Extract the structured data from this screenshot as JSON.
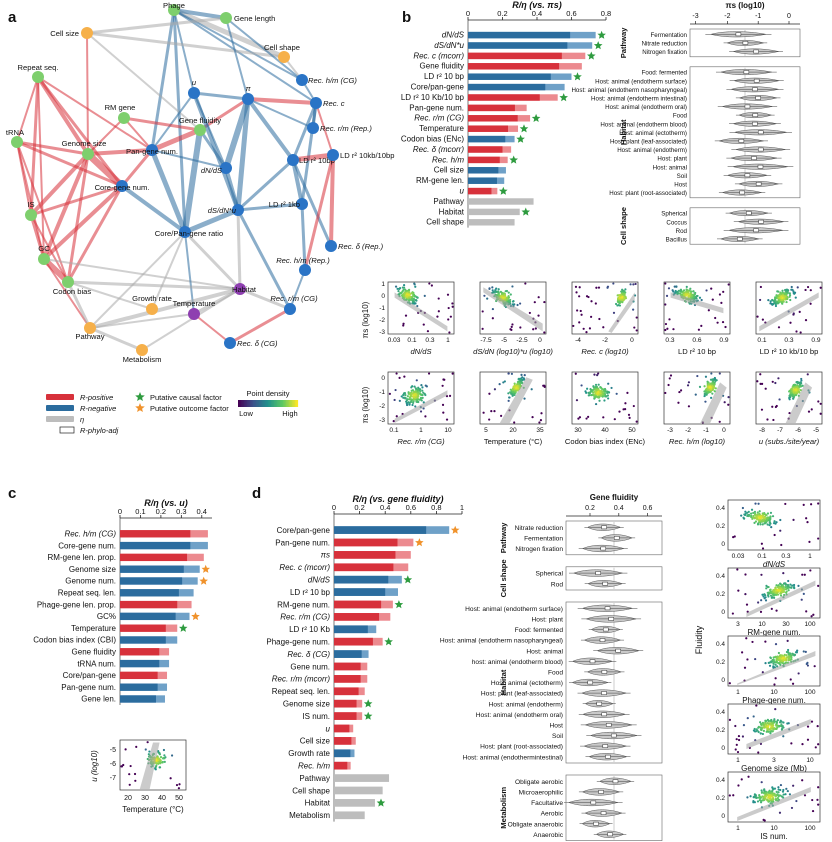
{
  "panels": {
    "a": "a",
    "b": "b",
    "c": "c",
    "d": "d"
  },
  "colors": {
    "pos": "#d7313b",
    "neg": "#2b6c9e",
    "eta": "#bdbdbd",
    "green": "#2e9b3f",
    "orange": "#f0922b",
    "node_green": "#7ecf6d",
    "node_orange": "#f6b04a",
    "node_blue": "#2a74c6",
    "node_purple": "#8e3fb0"
  },
  "network": {
    "nodes": [
      {
        "id": "phage",
        "label": "Phage",
        "c": "green",
        "italic": false
      },
      {
        "id": "genelen",
        "label": "Gene length",
        "c": "green",
        "italic": false
      },
      {
        "id": "cellsize",
        "label": "Cell size",
        "c": "orange",
        "italic": false
      },
      {
        "id": "cellshape",
        "label": "Cell shape",
        "c": "orange",
        "italic": false
      },
      {
        "id": "rephm",
        "label": "Rec. h/m (CG)",
        "c": "blue",
        "italic": true
      },
      {
        "id": "u",
        "label": "u",
        "c": "blue",
        "italic": true
      },
      {
        "id": "repeat",
        "label": "Repeat seq.",
        "c": "green",
        "italic": false
      },
      {
        "id": "pi",
        "label": "π",
        "c": "blue",
        "italic": true
      },
      {
        "id": "recc",
        "label": "Rec. c",
        "c": "blue",
        "italic": true
      },
      {
        "id": "rmgene",
        "label": "RM gene",
        "c": "green",
        "italic": false
      },
      {
        "id": "recrmrep",
        "label": "Rec. r/m (Rep.)",
        "c": "blue",
        "italic": true
      },
      {
        "id": "trna",
        "label": "tRNA",
        "c": "green",
        "italic": false
      },
      {
        "id": "genefluid",
        "label": "Gene fluidity",
        "c": "green",
        "italic": false
      },
      {
        "id": "genomesize",
        "label": "Genome size",
        "c": "green",
        "italic": false
      },
      {
        "id": "pangene",
        "label": "Pan-gene num.",
        "c": "blue",
        "italic": false
      },
      {
        "id": "ld10",
        "label": "LD r² 10bp",
        "c": "blue",
        "italic": false
      },
      {
        "id": "ld10kb",
        "label": "LD r² 10kb/10bp",
        "c": "blue",
        "italic": false
      },
      {
        "id": "dnds",
        "label": "dN/dS",
        "c": "blue",
        "italic": true
      },
      {
        "id": "coregene",
        "label": "Core-gene num.",
        "c": "blue",
        "italic": false
      },
      {
        "id": "is",
        "label": "IS",
        "c": "green",
        "italic": false
      },
      {
        "id": "ld1kb",
        "label": "LD r² 1kb",
        "c": "blue",
        "italic": false
      },
      {
        "id": "dsdnu",
        "label": "dS/dN*u",
        "c": "blue",
        "italic": true
      },
      {
        "id": "corepan",
        "label": "Core/Pan-gene ratio",
        "c": "blue",
        "italic": false
      },
      {
        "id": "recdrep",
        "label": "Rec. δ (Rep.)",
        "c": "blue",
        "italic": true
      },
      {
        "id": "gc",
        "label": "GC",
        "c": "green",
        "italic": false
      },
      {
        "id": "rechmrep",
        "label": "Rec. h/m (Rep.)",
        "c": "blue",
        "italic": true
      },
      {
        "id": "codon",
        "label": "Codon bias",
        "c": "green",
        "italic": false
      },
      {
        "id": "habitat",
        "label": "Habitat",
        "c": "purple",
        "italic": false
      },
      {
        "id": "growth",
        "label": "Growth rate",
        "c": "orange",
        "italic": false
      },
      {
        "id": "temp",
        "label": "Temperature",
        "c": "purple",
        "italic": false
      },
      {
        "id": "recrmcg",
        "label": "Rec. r/m (CG)",
        "c": "blue",
        "italic": true
      },
      {
        "id": "pathway",
        "label": "Pathway",
        "c": "orange",
        "italic": false
      },
      {
        "id": "recdcg",
        "label": "Rec. δ (CG)",
        "c": "blue",
        "italic": true
      },
      {
        "id": "metab",
        "label": "Metabolism",
        "c": "orange",
        "italic": false
      }
    ],
    "legend": {
      "r_pos": "R-positive",
      "r_neg": "R-negative",
      "eta": "η",
      "phylo": "R-phylo-adj",
      "causal": "Putative causal factor",
      "outcome": "Putative outcome factor",
      "density": "Point density",
      "low": "Low",
      "high": "High"
    }
  },
  "panel_b": {
    "title": "R/η (vs. πs)",
    "ticks": [
      "0",
      "0.2",
      "0.4",
      "0.6",
      "0.8"
    ],
    "bars": [
      {
        "label": "dN/dS",
        "italic": true,
        "v": 0.74,
        "c": "neg",
        "star": "green"
      },
      {
        "label": "dS/dN*u",
        "italic": true,
        "v": 0.72,
        "c": "neg",
        "star": "green"
      },
      {
        "label": "Rec. c (mcorr)",
        "italic": true,
        "v": 0.68,
        "c": "pos",
        "star": "green"
      },
      {
        "label": "Gene fluidity",
        "italic": false,
        "v": 0.66,
        "c": "pos",
        "star": ""
      },
      {
        "label": "LD r² 10 bp",
        "italic": false,
        "v": 0.6,
        "c": "neg",
        "star": "green"
      },
      {
        "label": "Core/pan-gene",
        "italic": false,
        "v": 0.56,
        "c": "neg",
        "star": ""
      },
      {
        "label": "LD r² 10 Kb/10 bp",
        "italic": false,
        "v": 0.52,
        "c": "pos",
        "star": "green"
      },
      {
        "label": "Pan-gene num.",
        "italic": false,
        "v": 0.34,
        "c": "pos",
        "star": ""
      },
      {
        "label": "Rec. r/m (CG)",
        "italic": true,
        "v": 0.36,
        "c": "pos",
        "star": "green"
      },
      {
        "label": "Temperature",
        "italic": false,
        "v": 0.29,
        "c": "pos",
        "star": "green"
      },
      {
        "label": "Codon bias (ENc)",
        "italic": false,
        "v": 0.27,
        "c": "neg",
        "star": "green"
      },
      {
        "label": "Rec. δ (mcorr)",
        "italic": true,
        "v": 0.25,
        "c": "pos",
        "star": ""
      },
      {
        "label": "Rec. h/m",
        "italic": true,
        "v": 0.23,
        "c": "pos",
        "star": "green"
      },
      {
        "label": "Cell size",
        "italic": false,
        "v": 0.22,
        "c": "neg",
        "star": ""
      },
      {
        "label": "RM-gene len.",
        "italic": false,
        "v": 0.21,
        "c": "neg",
        "star": ""
      },
      {
        "label": "u",
        "italic": true,
        "v": 0.17,
        "c": "pos",
        "star": "green"
      },
      {
        "label": "Pathway",
        "italic": false,
        "v": 0.38,
        "c": "eta",
        "star": ""
      },
      {
        "label": "Habitat",
        "italic": false,
        "v": 0.3,
        "c": "eta",
        "star": "green"
      },
      {
        "label": "Cell shape",
        "italic": false,
        "v": 0.27,
        "c": "eta",
        "star": ""
      }
    ],
    "violin_title": "πs (log10)",
    "violin_ticks": [
      "-3",
      "-2",
      "-1",
      "0"
    ],
    "groups": [
      {
        "name": "Pathway",
        "items": [
          "Fermentation",
          "Nitrate reduction",
          "Nitrogen fixation"
        ]
      },
      {
        "name": "Habitat",
        "items": [
          "Food: fermented",
          "Host: animal (endotherm surface)",
          "Host: animal (endotherm nasopharyngeal)",
          "Host: animal (endotherm intestinal)",
          "Host: animal (endotherm oral)",
          "Food",
          "Host: animal (endotherm blood)",
          "Host: animal (ectotherm)",
          "Host: plant (leaf-associated)",
          "Host: animal (endotherm)",
          "Host: plant",
          "Host: animal",
          "Soil",
          "Host",
          "Host: plant (root-associated)"
        ]
      },
      {
        "name": "Cell shape",
        "items": [
          "Spherical",
          "Coccus",
          "Rod",
          "Bacillus"
        ]
      }
    ],
    "scatter_ylabel": "πs (log10)",
    "scatter_row1": [
      {
        "xlabel": "dN/dS",
        "ticks": [
          "0.03",
          "0.1",
          "0.3",
          "1"
        ]
      },
      {
        "xlabel": "dS/dN (log10)*u (log10)",
        "ticks": [
          "-7.5",
          "-5",
          "-2.5",
          "0"
        ]
      },
      {
        "xlabel": "Rec. c (log10)",
        "ticks": [
          "-4",
          "-2",
          "0"
        ]
      },
      {
        "xlabel": "LD r² 10 bp",
        "ticks": [
          "0.3",
          "0.6",
          "0.9"
        ]
      },
      {
        "xlabel": "LD r² 10 kb/10 bp",
        "ticks": [
          "0.1",
          "0.3",
          "0.9"
        ]
      }
    ],
    "scatter_row2": [
      {
        "xlabel": "Rec. r/m (CG)",
        "ticks": [
          "0.1",
          "1",
          "10"
        ]
      },
      {
        "xlabel": "Temperature (°C)",
        "ticks": [
          "5",
          "20",
          "35"
        ]
      },
      {
        "xlabel": "Codon bias index (ENc)",
        "ticks": [
          "30",
          "40",
          "50"
        ]
      },
      {
        "xlabel": "Rec. h/m (log10)",
        "ticks": [
          "-3",
          "-2",
          "-1",
          "0"
        ]
      },
      {
        "xlabel": "u (subs./site/year)",
        "ticks": [
          "-8",
          "-7",
          "-6",
          "-5"
        ]
      }
    ],
    "row1_yticks": [
      "-3",
      "-2",
      "-1",
      "0",
      "1"
    ],
    "row2_yticks": [
      "-3",
      "-2",
      "-1",
      "0"
    ]
  },
  "panel_c": {
    "title": "R/η (vs. u)",
    "ticks": [
      "0",
      "0.1",
      "0.2",
      "0.3",
      "0.4"
    ],
    "bars": [
      {
        "label": "Rec. h/m (CG)",
        "italic": true,
        "v": 0.43,
        "c": "pos",
        "star": ""
      },
      {
        "label": "Core-gene num.",
        "italic": false,
        "v": 0.43,
        "c": "neg",
        "star": ""
      },
      {
        "label": "RM-gene len. prop.",
        "italic": false,
        "v": 0.41,
        "c": "pos",
        "star": ""
      },
      {
        "label": "Genome size",
        "italic": false,
        "v": 0.39,
        "c": "neg",
        "star": "orange"
      },
      {
        "label": "Genome num.",
        "italic": false,
        "v": 0.38,
        "c": "neg",
        "star": "orange"
      },
      {
        "label": "Repeat seq. len.",
        "italic": false,
        "v": 0.36,
        "c": "neg",
        "star": ""
      },
      {
        "label": "Phage-gene len. prop.",
        "italic": false,
        "v": 0.35,
        "c": "pos",
        "star": ""
      },
      {
        "label": "GC%",
        "italic": false,
        "v": 0.34,
        "c": "neg",
        "star": "orange"
      },
      {
        "label": "Temperature",
        "italic": false,
        "v": 0.28,
        "c": "pos",
        "star": "green"
      },
      {
        "label": "Codon bias index (CBI)",
        "italic": false,
        "v": 0.28,
        "c": "neg",
        "star": ""
      },
      {
        "label": "Gene fluidity",
        "italic": false,
        "v": 0.24,
        "c": "pos",
        "star": ""
      },
      {
        "label": "tRNA num.",
        "italic": false,
        "v": 0.24,
        "c": "neg",
        "star": ""
      },
      {
        "label": "Core/pan-gene",
        "italic": false,
        "v": 0.23,
        "c": "pos",
        "star": ""
      },
      {
        "label": "Pan-gene num.",
        "italic": false,
        "v": 0.23,
        "c": "neg",
        "star": ""
      },
      {
        "label": "Gene len.",
        "italic": false,
        "v": 0.22,
        "c": "neg",
        "star": ""
      }
    ],
    "scatter": {
      "ylabel": "u (log10)",
      "xlabel": "Temperature (°C)",
      "yticks": [
        "-5",
        "-6",
        "-7"
      ],
      "xticks": [
        "20",
        "30",
        "40",
        "50"
      ]
    }
  },
  "panel_d": {
    "title": "R/η (vs. gene fluidity)",
    "ticks": [
      "0",
      "0.2",
      "0.4",
      "0.6",
      "0.8",
      "1"
    ],
    "bars": [
      {
        "label": "Core/pan-gene",
        "italic": false,
        "v": 0.9,
        "c": "neg",
        "star": "orange"
      },
      {
        "label": "Pan-gene num.",
        "italic": false,
        "v": 0.62,
        "c": "pos",
        "star": "orange"
      },
      {
        "label": "πs",
        "italic": true,
        "v": 0.6,
        "c": "pos",
        "star": ""
      },
      {
        "label": "Rec. c (mcorr)",
        "italic": true,
        "v": 0.58,
        "c": "pos",
        "star": ""
      },
      {
        "label": "dN/dS",
        "italic": true,
        "v": 0.53,
        "c": "neg",
        "star": "green"
      },
      {
        "label": "LD r² 10 bp",
        "italic": false,
        "v": 0.5,
        "c": "neg",
        "star": ""
      },
      {
        "label": "RM-gene num.",
        "italic": false,
        "v": 0.46,
        "c": "pos",
        "star": "green"
      },
      {
        "label": "Rec. r/m (CG)",
        "italic": true,
        "v": 0.44,
        "c": "pos",
        "star": ""
      },
      {
        "label": "LD r² 10 Kb",
        "italic": false,
        "v": 0.33,
        "c": "neg",
        "star": ""
      },
      {
        "label": "Phage-gene num.",
        "italic": false,
        "v": 0.38,
        "c": "pos",
        "star": "green"
      },
      {
        "label": "Rec. δ (CG)",
        "italic": true,
        "v": 0.27,
        "c": "neg",
        "star": ""
      },
      {
        "label": "Gene num.",
        "italic": false,
        "v": 0.26,
        "c": "pos",
        "star": ""
      },
      {
        "label": "Rec. r/m (mcorr)",
        "italic": true,
        "v": 0.26,
        "c": "pos",
        "star": ""
      },
      {
        "label": "Repeat seq. len.",
        "italic": false,
        "v": 0.24,
        "c": "pos",
        "star": ""
      },
      {
        "label": "Genome size",
        "italic": false,
        "v": 0.22,
        "c": "pos",
        "star": "green"
      },
      {
        "label": "IS num.",
        "italic": false,
        "v": 0.22,
        "c": "pos",
        "star": "green"
      },
      {
        "label": "u",
        "italic": true,
        "v": 0.15,
        "c": "pos",
        "star": ""
      },
      {
        "label": "Cell size",
        "italic": false,
        "v": 0.17,
        "c": "pos",
        "star": ""
      },
      {
        "label": "Growth rate",
        "italic": false,
        "v": 0.16,
        "c": "neg",
        "star": ""
      },
      {
        "label": "Rec. h/m",
        "italic": true,
        "v": 0.13,
        "c": "pos",
        "star": ""
      },
      {
        "label": "Pathway",
        "italic": false,
        "v": 0.43,
        "c": "eta",
        "star": ""
      },
      {
        "label": "Cell shape",
        "italic": false,
        "v": 0.38,
        "c": "eta",
        "star": ""
      },
      {
        "label": "Habitat",
        "italic": false,
        "v": 0.32,
        "c": "eta",
        "star": "green"
      },
      {
        "label": "Metabolism",
        "italic": false,
        "v": 0.24,
        "c": "eta",
        "star": ""
      }
    ],
    "violin_title": "Gene fluidity",
    "violin_ticks": [
      "0.2",
      "0.4",
      "0.6"
    ],
    "groups": [
      {
        "name": "Pathway",
        "items": [
          "Nitrate reduction",
          "Fermentation",
          "Nitrogen fixation"
        ]
      },
      {
        "name": "Cell shape",
        "items": [
          "Spherical",
          "Rod"
        ]
      },
      {
        "name": "Habitat",
        "items": [
          "Host: animal (endotherm surface)",
          "Host: plant",
          "Food: fermented",
          "Host: animal (endotherm nasopharyngeal)",
          "Host: animal",
          "host: animal (endotherm blood)",
          "Food",
          "Host: animal (ectotherm)",
          "Host: plant (leaf-associated)",
          "Host: animal (endotherm)",
          "Host: animal (endotherm oral)",
          "Host",
          "Soil",
          "Host: plant (root-associated)",
          "Host: animal (endothermintestinal)"
        ]
      },
      {
        "name": "Metabolism",
        "items": [
          "Obligate aerobic",
          "Microaerophilic",
          "Facultative",
          "Aerobic",
          "Obligate anaerobic",
          "Anaerobic"
        ]
      }
    ],
    "scatter_ylabel": "Fluidity",
    "scatters": [
      {
        "xlabel": "dN/dS",
        "ticks": [
          "0.03",
          "0.1",
          "0.3",
          "1"
        ]
      },
      {
        "xlabel": "RM-gene num.",
        "ticks": [
          "3",
          "10",
          "30",
          "100"
        ]
      },
      {
        "xlabel": "Phage-gene num.",
        "ticks": [
          "1",
          "10",
          "100"
        ]
      },
      {
        "xlabel": "Genome size (Mb)",
        "ticks": [
          "1",
          "3",
          "10"
        ]
      },
      {
        "xlabel": "IS num.",
        "ticks": [
          "1",
          "10",
          "100"
        ]
      }
    ],
    "scatter_yticks": [
      "0.4",
      "0.2",
      "0"
    ]
  }
}
